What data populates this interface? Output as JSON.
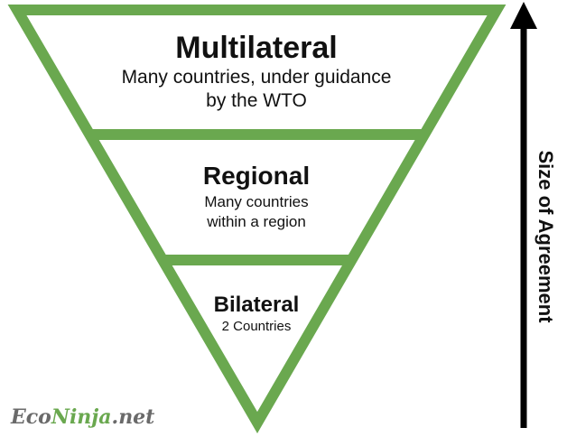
{
  "colors": {
    "frame": "#6aa84f",
    "text": "#111111",
    "arrow": "#000000",
    "watermark_gray": "#6a6a6a",
    "watermark_green": "#6aa84f"
  },
  "tiers": [
    {
      "title": "Multilateral",
      "subtitle_lines": [
        "Many countries, under guidance",
        "by the WTO"
      ]
    },
    {
      "title": "Regional",
      "subtitle_lines": [
        "Many countries",
        "within a region"
      ]
    },
    {
      "title": "Bilateral",
      "subtitle_lines": [
        "2 Countries"
      ]
    }
  ],
  "axis": {
    "label": "Size of Agreement",
    "direction_icon": "up-arrow-icon"
  },
  "watermark": {
    "part1": "Eco",
    "part2": "Ninja",
    "part3": ".net"
  }
}
